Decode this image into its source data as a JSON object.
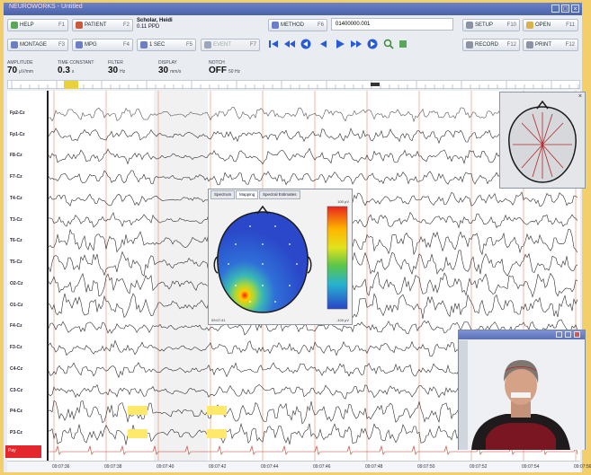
{
  "app": {
    "window_title": "NEUROWORKS - Untitled"
  },
  "toolbar": {
    "row1": [
      {
        "label": "HELP",
        "key": "F1"
      },
      {
        "label": "PATIENT",
        "key": "F2"
      },
      {
        "label": "METHOD",
        "key": "F6"
      },
      {
        "label": "SETUP",
        "key": "F10"
      },
      {
        "label": "OPEN",
        "key": "F11"
      }
    ],
    "row2": [
      {
        "label": "MONTAGE",
        "key": "F3"
      },
      {
        "label": "MPG",
        "key": "F4"
      },
      {
        "label": "1 SEC",
        "key": "F5"
      },
      {
        "label": "EVENT",
        "key": "F7"
      },
      {
        "label": "RECORD",
        "key": "F12"
      },
      {
        "label": "PRINT",
        "key": "F12"
      }
    ]
  },
  "patient": {
    "name": "Scholar, Heidi",
    "id": "0.11 PPD"
  },
  "recording_id": "01400000.001",
  "settings": [
    {
      "caption": "AMPLITUDE",
      "value": "70",
      "unit": "µV/mm"
    },
    {
      "caption": "TIME CONSTANT",
      "value": "0.3",
      "unit": "s"
    },
    {
      "caption": "FILTER",
      "value": "30",
      "unit": "Hz"
    },
    {
      "caption": "DISPLAY",
      "value": "30",
      "unit": "mm/s"
    },
    {
      "caption": "NOTCH",
      "value": "OFF",
      "unit": "50 Hz"
    }
  ],
  "channels": [
    "Fp2-Cz",
    "Fp1-Cz",
    "F8-Cz",
    "F7-Cz",
    "T4-Cz",
    "T3-Cz",
    "T6-Cz",
    "T5-Cz",
    "O2-Cz",
    "O1-Cz",
    "F4-Cz",
    "F3-Cz",
    "C4-Cz",
    "C3-Cz",
    "P4-Cz",
    "P3-Cz"
  ],
  "status_block": "Pay",
  "time_axis": [
    "09:07:36",
    "09:07:38",
    "09:07:40",
    "09:07:42",
    "09:07:44",
    "09:07:46",
    "09:07:48",
    "09:07:50",
    "09:07:52",
    "09:07:54",
    "09:07:56"
  ],
  "mapping_window": {
    "tabs": [
      "Spectrum",
      "Mapping",
      "Spectral Estimates"
    ],
    "active_tab": "Mapping",
    "scale_max": "100 µV",
    "scale_min": "-100 µV",
    "footer": "09:07:41"
  },
  "icons": {
    "help": "help-icon",
    "patient": "patient-icon",
    "method": "method-icon",
    "setup": "setup-icon",
    "open": "open-icon",
    "play": "play-icon",
    "rewind": "rewind-icon"
  },
  "colors": {
    "accent": "#4b62a8",
    "trace": "#2b2b2b",
    "second_marker": "#f0a58a",
    "annotation": "#ffe96b",
    "alert": "#e3272c"
  }
}
